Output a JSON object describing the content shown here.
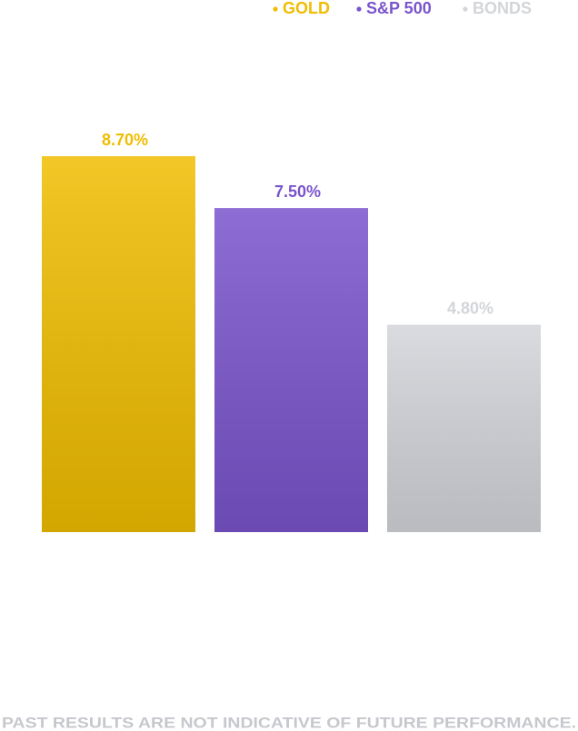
{
  "chart_data": {
    "type": "bar",
    "series": [
      {
        "name": "GOLD",
        "color": "#f0bd00",
        "values": [
          8.7
        ],
        "value_labels": [
          "8.70%"
        ]
      },
      {
        "name": "S&P 500",
        "color": "#7a54cc",
        "values": [
          7.5
        ],
        "value_labels": [
          "7.50%"
        ]
      },
      {
        "name": "BONDS",
        "color": "#d3d5da",
        "values": [
          4.8
        ],
        "value_labels": [
          "4.80%"
        ]
      }
    ],
    "footnote": "PAST RESULTS ARE NOT INDICATIVE OF FUTURE PERFORMANCE."
  }
}
